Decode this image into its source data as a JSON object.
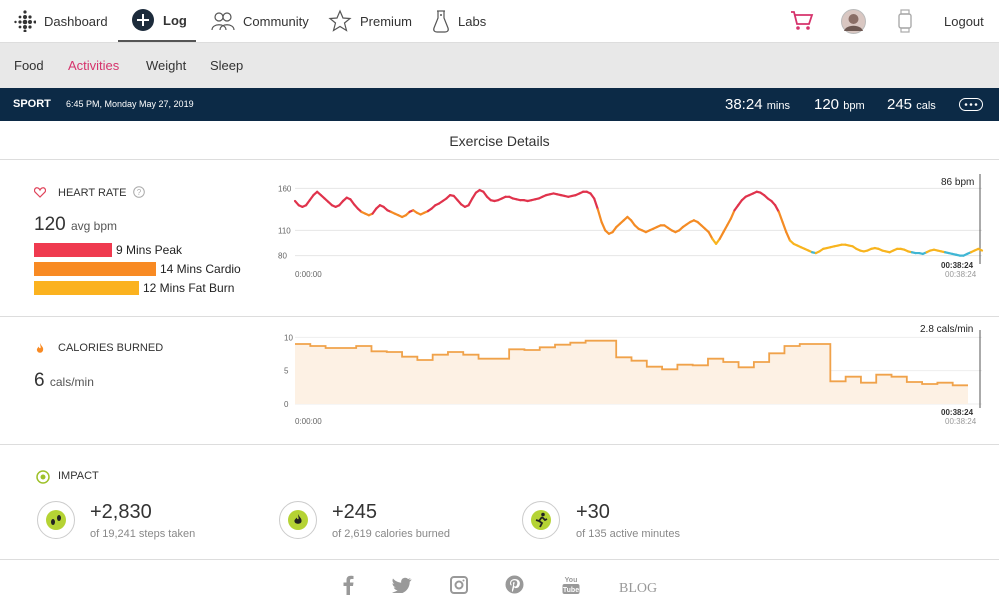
{
  "nav": {
    "dashboard": "Dashboard",
    "log": "Log",
    "community": "Community",
    "premium": "Premium",
    "labs": "Labs",
    "logout": "Logout"
  },
  "subnav": {
    "food": "Food",
    "activities": "Activities",
    "weight": "Weight",
    "sleep": "Sleep"
  },
  "sportbar": {
    "title": "SPORT",
    "datetime": "6:45 PM, Monday May 27, 2019",
    "duration_value": "38:24",
    "duration_unit": "mins",
    "bpm_value": "120",
    "bpm_unit": "bpm",
    "cals_value": "245",
    "cals_unit": "cals"
  },
  "section_title": "Exercise Details",
  "heart_rate": {
    "label": "HEART RATE",
    "avg_value": "120",
    "avg_unit": "avg bpm",
    "zones": [
      {
        "label": "9 Mins Peak",
        "color": "#ef3a4f",
        "minutes": 9
      },
      {
        "label": "14 Mins Cardio",
        "color": "#f88a23",
        "minutes": 14
      },
      {
        "label": "12 Mins Fat Burn",
        "color": "#fbb21f",
        "minutes": 12
      }
    ],
    "end_value": "86 bpm",
    "start_time": "0:00:00",
    "end_time": "00:38:24",
    "end_time_axis": "00:38:24"
  },
  "calories": {
    "label": "CALORIES BURNED",
    "avg_value": "6",
    "avg_unit": "cals/min",
    "end_value": "2.8 cals/min",
    "start_time": "0:00:00",
    "end_time": "00:38:24",
    "end_time_axis": "00:38:24"
  },
  "impact": {
    "label": "IMPACT",
    "items": [
      {
        "value": "+2,830",
        "sub": "of 19,241 steps taken",
        "icon": "footprints-icon"
      },
      {
        "value": "+245",
        "sub": "of 2,619 calories burned",
        "icon": "flame-icon"
      },
      {
        "value": "+30",
        "sub": "of 135 active minutes",
        "icon": "runner-icon"
      }
    ]
  },
  "footer": {
    "blog": "BLOG"
  },
  "chart_data": [
    {
      "type": "line",
      "title": "HEART RATE",
      "xlabel": "",
      "ylabel": "",
      "y_ticks": [
        80,
        110,
        160
      ],
      "ylim": [
        70,
        170
      ],
      "x_start": "0:00:00",
      "x_end": "00:38:24",
      "y_unit": "bpm",
      "values": [
        145,
        140,
        138,
        140,
        146,
        152,
        156,
        152,
        148,
        144,
        140,
        138,
        140,
        145,
        149,
        147,
        141,
        136,
        132,
        130,
        128,
        130,
        136,
        140,
        138,
        134,
        132,
        130,
        128,
        126,
        128,
        132,
        134,
        131,
        129,
        131,
        133,
        136,
        140,
        142,
        145,
        148,
        152,
        151,
        146,
        141,
        138,
        140,
        148,
        155,
        158,
        156,
        150,
        146,
        145,
        146,
        148,
        150,
        150,
        148,
        147,
        146,
        146,
        145,
        146,
        147,
        148,
        150,
        152,
        153,
        154,
        153,
        152,
        151,
        150,
        151,
        152,
        154,
        156,
        156,
        154,
        148,
        135,
        120,
        110,
        106,
        108,
        114,
        118,
        122,
        126,
        122,
        116,
        112,
        110,
        108,
        110,
        112,
        114,
        116,
        116,
        113,
        110,
        108,
        110,
        114,
        117,
        120,
        122,
        120,
        116,
        112,
        108,
        100,
        94,
        100,
        108,
        116,
        124,
        134,
        140,
        146,
        150,
        152,
        154,
        156,
        155,
        152,
        148,
        145,
        140,
        132,
        120,
        108,
        98,
        94,
        92,
        90,
        88,
        86,
        84,
        83,
        85,
        88,
        89,
        90,
        91,
        92,
        93,
        93,
        92,
        91,
        88,
        86,
        85,
        86,
        88,
        89,
        88,
        86,
        85,
        84,
        86,
        88,
        88,
        87,
        85,
        84,
        83,
        83,
        82,
        84,
        86,
        87,
        86,
        85,
        84,
        83,
        82,
        81,
        80,
        80,
        82,
        84,
        86,
        88,
        86
      ]
    },
    {
      "type": "area",
      "title": "CALORIES BURNED",
      "xlabel": "",
      "ylabel": "",
      "y_ticks": [
        0,
        5,
        10
      ],
      "ylim": [
        0,
        10.5
      ],
      "x_start": "0:00:00",
      "x_end": "00:38:24",
      "y_unit": "cals/min",
      "values": [
        9.0,
        8.7,
        8.4,
        8.4,
        8.7,
        7.9,
        7.8,
        7.1,
        6.6,
        7.4,
        7.8,
        7.4,
        6.8,
        6.8,
        8.2,
        8.1,
        8.5,
        8.9,
        9.2,
        9.5,
        9.5,
        7.0,
        6.5,
        5.6,
        5.2,
        5.9,
        5.8,
        6.8,
        6.3,
        5.5,
        6.3,
        7.6,
        8.7,
        9.0,
        9.0,
        3.4,
        4.1,
        3.2,
        4.4,
        4.1,
        3.3,
        3.0,
        3.2,
        2.8
      ]
    }
  ]
}
